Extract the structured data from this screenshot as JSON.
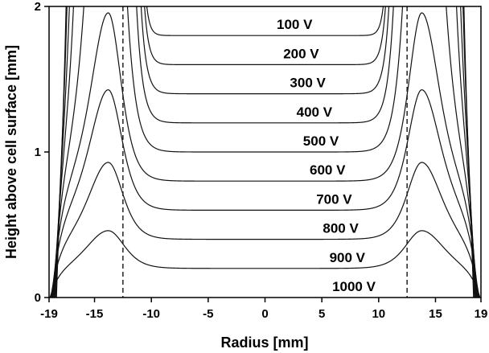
{
  "chart_data": {
    "type": "line",
    "title": "",
    "xlabel": "Radius [mm]",
    "ylabel": "Height above cell surface [mm]",
    "xlim": [
      -19,
      19
    ],
    "ylim": [
      0,
      2
    ],
    "xticks": [
      -19,
      -15,
      -10,
      -5,
      0,
      5,
      10,
      15,
      19
    ],
    "yticks": [
      0,
      1,
      2
    ],
    "grid": false,
    "dashed_lines_x": [
      -12.5,
      12.5
    ],
    "symmetric_about": 0,
    "peak_radius": 13.8,
    "series": [
      {
        "name": "100 V",
        "plateau": 1.8,
        "peak": null,
        "top_crossing_radius": 10.4
      },
      {
        "name": "200 V",
        "plateau": 1.6,
        "peak": null,
        "top_crossing_radius": 10.6
      },
      {
        "name": "300 V",
        "plateau": 1.4,
        "peak": null,
        "top_crossing_radius": 10.9
      },
      {
        "name": "400 V",
        "plateau": 1.2,
        "peak": null,
        "top_crossing_radius": 11.3
      },
      {
        "name": "500 V",
        "plateau": 1.0,
        "peak": null,
        "top_crossing_radius": 12.1
      },
      {
        "name": "600 V",
        "plateau": 0.8,
        "peak": 1.96
      },
      {
        "name": "700 V",
        "plateau": 0.6,
        "peak": 1.43
      },
      {
        "name": "800 V",
        "plateau": 0.4,
        "peak": 0.93
      },
      {
        "name": "900 V",
        "plateau": 0.2,
        "peak": 0.46
      },
      {
        "name": "1000 V",
        "plateau": 0.0,
        "peak": null
      }
    ]
  }
}
